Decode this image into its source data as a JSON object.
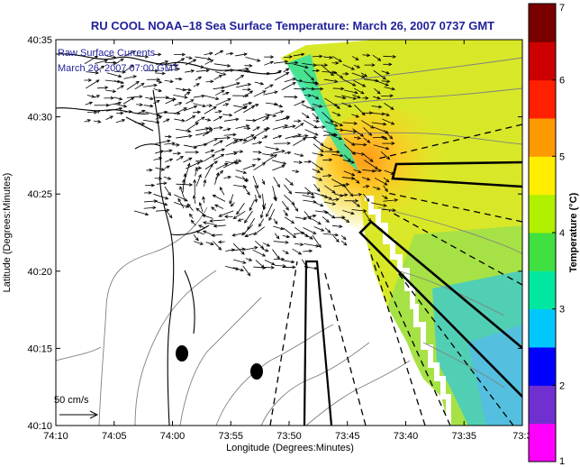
{
  "title": "RU COOL  NOAA–18  Sea Surface Temperature:  March 26, 2007 0737 GMT",
  "annotations": {
    "raw_currents": "Raw Surface Currents",
    "currents_time": "March 26, 2007 07:00 GMT",
    "scale_vector": "50 cm/s"
  },
  "axes": {
    "xlabel": "Longitude (Degrees:Minutes)",
    "ylabel": "Latitude (Degrees:Minutes)",
    "xticks": [
      "74:10",
      "74:05",
      "74:00",
      "73:55",
      "73:50",
      "73:45",
      "73:40",
      "73:35",
      "73:3"
    ],
    "yticks": [
      "40:35",
      "40:30",
      "40:25",
      "40:20",
      "40:15",
      "40:10"
    ]
  },
  "colorbar": {
    "label": "Temperature (°C)",
    "ticks": [
      "7",
      "6",
      "5",
      "4",
      "3",
      "2",
      "1"
    ],
    "min": 1,
    "max": 7,
    "colors": [
      "#ff00ff",
      "#7030d0",
      "#0000ff",
      "#00c8ff",
      "#00e8a0",
      "#40e040",
      "#b0f000",
      "#ffee00",
      "#ff9900",
      "#ff2000",
      "#cc0000",
      "#7a0000"
    ]
  },
  "sst_colors": {
    "warm_core": "#ff9a1a",
    "mid": "#e6ea20",
    "cool": "#7fd85a",
    "cold": "#20c8e0",
    "water_coast": "#30e0b0"
  },
  "features": {
    "markers": 2,
    "land_color": "#ffffff",
    "contour_color": "#7a7a7a",
    "vector_color": "#000000",
    "corridor_color": "#000000"
  }
}
